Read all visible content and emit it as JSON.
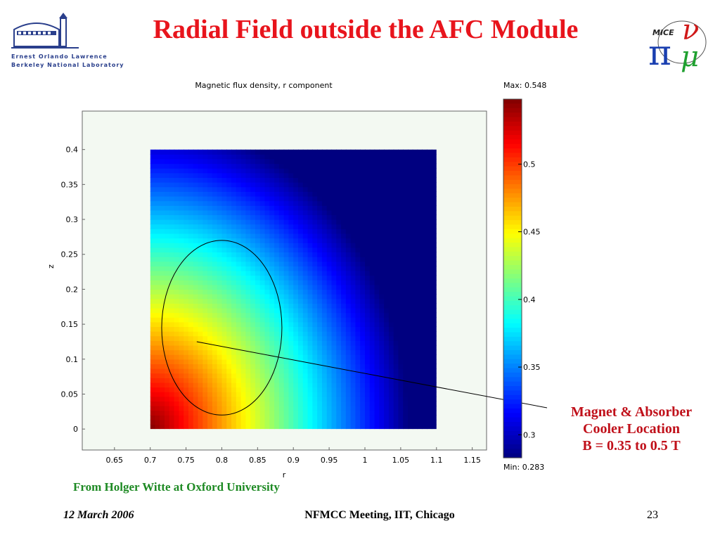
{
  "slide": {
    "title": "Radial Field outside the AFC Module",
    "annotation": {
      "line1": "Magnet & Absorber",
      "line2": "Cooler Location",
      "line3": "B = 0.35 to 0.5 T"
    },
    "credit": "From Holger Witte at Oxford University",
    "footer": {
      "date": "12 March 2006",
      "meeting": "NFMCC Meeting, IIT, Chicago",
      "page": "23"
    },
    "logos": {
      "left_line1": "Ernest Orlando Lawrence",
      "left_line2": "Berkeley National Laboratory",
      "right_text": "MICE"
    }
  },
  "colors": {
    "title": "#e8141c",
    "annotation": "#c0101a",
    "credit": "#1e8a24"
  },
  "chart_data": {
    "type": "heatmap",
    "title": "Magnetic flux density, r component",
    "xlabel": "r",
    "ylabel": "z",
    "xlim": [
      0.605,
      1.17
    ],
    "ylim": [
      -0.03,
      0.455
    ],
    "data_xrange": [
      0.7,
      1.1
    ],
    "data_yrange": [
      0.0,
      0.4
    ],
    "xticks": [
      0.65,
      0.7,
      0.75,
      0.8,
      0.85,
      0.9,
      0.95,
      1,
      1.05,
      1.1,
      1.15
    ],
    "xtick_labels": [
      "0.65",
      "0.7",
      "0.75",
      "0.8",
      "0.85",
      "0.9",
      "0.95",
      "1",
      "1.05",
      "1.1",
      "1.15"
    ],
    "yticks": [
      0,
      0.05,
      0.1,
      0.15,
      0.2,
      0.25,
      0.3,
      0.35,
      0.4
    ],
    "ytick_labels": [
      "0",
      "0.05",
      "0.1",
      "0.15",
      "0.2",
      "0.25",
      "0.3",
      "0.35",
      "0.4"
    ],
    "colorbar": {
      "max_label": "Max: 0.548",
      "min_label": "Min: 0.283",
      "max": 0.548,
      "min": 0.283,
      "ticks": [
        0.3,
        0.35,
        0.4,
        0.45,
        0.5
      ],
      "tick_labels": [
        "0.3",
        "0.35",
        "0.4",
        "0.45",
        "0.5"
      ],
      "colormap": "jet"
    },
    "field_samples": [
      {
        "r": 0.7,
        "z": 0.0,
        "B": 0.548
      },
      {
        "r": 0.7,
        "z": 0.15,
        "B": 0.46
      },
      {
        "r": 0.7,
        "z": 0.4,
        "B": 0.33
      },
      {
        "r": 0.8,
        "z": 0.0,
        "B": 0.45
      },
      {
        "r": 0.9,
        "z": 0.0,
        "B": 0.39
      },
      {
        "r": 1.1,
        "z": 0.0,
        "B": 0.283
      },
      {
        "r": 1.1,
        "z": 0.4,
        "B": 0.3
      }
    ],
    "ellipse": {
      "center_r": 0.8,
      "center_z": 0.145,
      "semi_r": 0.084,
      "semi_z": 0.125
    },
    "callout_point": {
      "r": 0.765,
      "z": 0.125
    }
  }
}
